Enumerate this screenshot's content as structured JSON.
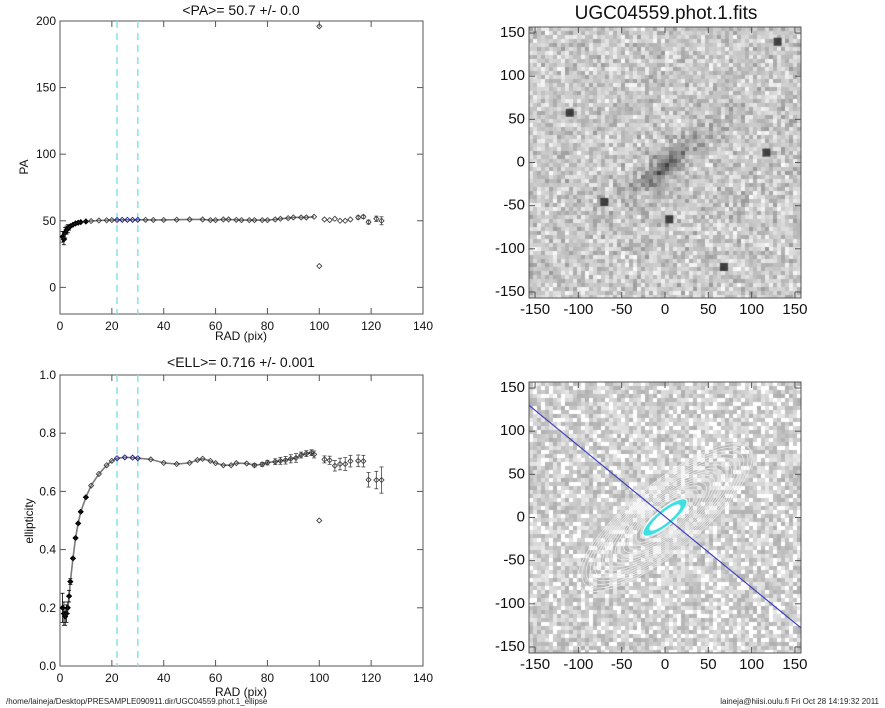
{
  "chart_data": [
    {
      "type": "scatter",
      "title": "<PA>=  50.7 +/-   0.0",
      "xlabel": "RAD (pix)",
      "ylabel": "PA",
      "xlim": [
        0,
        140
      ],
      "ylim": [
        -20,
        200
      ],
      "xticks": [
        0,
        20,
        40,
        60,
        80,
        100,
        120,
        140
      ],
      "yticks": [
        0,
        50,
        100,
        150,
        200
      ],
      "vlines": [
        22,
        30
      ],
      "vline_color": "#7fe8ee",
      "highlight_range": [
        22,
        30
      ],
      "highlight_color": "#1a1aa0",
      "x": [
        1,
        1.5,
        2,
        2.5,
        3,
        3.5,
        4,
        5,
        6,
        7,
        8,
        10,
        12,
        15,
        18,
        20,
        22,
        24,
        26,
        28,
        30,
        33,
        36,
        40,
        45,
        50,
        55,
        58,
        60,
        63,
        65,
        68,
        70,
        73,
        75,
        78,
        80,
        83,
        85,
        88,
        90,
        93,
        95,
        98,
        100,
        100,
        102,
        104,
        106,
        108,
        110,
        112,
        115,
        117,
        119,
        122,
        124
      ],
      "y": [
        38,
        36,
        41,
        43,
        44,
        45,
        46,
        47,
        48,
        48.5,
        49,
        49.5,
        49.8,
        50.2,
        50.4,
        50.5,
        50.6,
        50.7,
        50.7,
        50.7,
        50.7,
        50.7,
        50.6,
        50.6,
        50.8,
        51,
        51,
        50.5,
        50.5,
        51,
        51,
        50.7,
        50.5,
        50.5,
        50.5,
        50.5,
        50.5,
        51,
        51.5,
        52,
        52.5,
        52.5,
        52.5,
        53,
        196,
        16,
        51,
        50.5,
        51.5,
        50,
        50,
        51,
        52.5,
        53,
        49,
        51.5,
        50
      ],
      "yerr": [
        4,
        4,
        4,
        3,
        3,
        2,
        1,
        0.5,
        0.3,
        0.2,
        0.2,
        0.1,
        0.1,
        0.1,
        0.1,
        0.1,
        0.1,
        0.1,
        0.1,
        0.1,
        0.1,
        0.1,
        0.1,
        0.1,
        0.1,
        0.1,
        0.2,
        0.2,
        0.2,
        0.2,
        0.2,
        0.2,
        0.2,
        0.2,
        0.3,
        0.3,
        0.3,
        0.3,
        0.4,
        0.4,
        0.5,
        0.5,
        0.5,
        0.6,
        0.8,
        0.8,
        0.8,
        0.8,
        0.9,
        1,
        1,
        1,
        1.2,
        1.2,
        1.5,
        2,
        3
      ]
    },
    {
      "type": "scatter",
      "title": "<ELL>= 0.716 +/-  0.001",
      "xlabel": "RAD (pix)",
      "ylabel": "ellipticity",
      "xlim": [
        0,
        140
      ],
      "ylim": [
        0,
        1.0
      ],
      "xticks": [
        0,
        20,
        40,
        60,
        80,
        100,
        120,
        140
      ],
      "yticks": [
        0.0,
        0.2,
        0.4,
        0.6,
        0.8,
        1.0
      ],
      "vlines": [
        22,
        30
      ],
      "vline_color": "#7fe8ee",
      "highlight_range": [
        22,
        30
      ],
      "highlight_color": "#1a1aa0",
      "x": [
        1,
        1.5,
        2,
        2.5,
        3,
        3.5,
        4,
        5,
        6,
        7,
        8,
        10,
        12,
        15,
        18,
        20,
        22,
        25,
        28,
        30,
        35,
        40,
        45,
        50,
        53,
        55,
        58,
        60,
        63,
        66,
        68,
        72,
        75,
        78,
        80,
        83,
        85,
        87,
        89,
        91,
        93,
        95,
        97,
        98,
        100,
        102,
        104,
        106,
        108,
        110,
        112,
        115,
        117,
        119,
        122,
        124
      ],
      "y": [
        0.2,
        0.18,
        0.17,
        0.18,
        0.2,
        0.24,
        0.29,
        0.37,
        0.44,
        0.49,
        0.53,
        0.58,
        0.62,
        0.66,
        0.69,
        0.705,
        0.714,
        0.717,
        0.716,
        0.714,
        0.71,
        0.698,
        0.694,
        0.698,
        0.708,
        0.712,
        0.705,
        0.697,
        0.69,
        0.69,
        0.697,
        0.696,
        0.69,
        0.693,
        0.699,
        0.702,
        0.705,
        0.707,
        0.712,
        0.715,
        0.725,
        0.73,
        0.733,
        0.727,
        0.5,
        0.71,
        0.707,
        0.688,
        0.694,
        0.694,
        0.704,
        0.705,
        0.704,
        0.64,
        0.639,
        0.639
      ],
      "yerr": [
        0.05,
        0.04,
        0.03,
        0.03,
        0.02,
        0.02,
        0.01,
        0.005,
        0.004,
        0.003,
        0.003,
        0.002,
        0.002,
        0.002,
        0.002,
        0.002,
        0.002,
        0.002,
        0.002,
        0.002,
        0.002,
        0.002,
        0.003,
        0.003,
        0.003,
        0.003,
        0.004,
        0.004,
        0.004,
        0.005,
        0.005,
        0.005,
        0.006,
        0.007,
        0.008,
        0.01,
        0.012,
        0.013,
        0.014,
        0.015,
        0.01,
        0.01,
        0.01,
        0.012,
        0.005,
        0.012,
        0.014,
        0.018,
        0.02,
        0.022,
        0.02,
        0.02,
        0.02,
        0.025,
        0.03,
        0.045
      ]
    },
    {
      "type": "heatmap",
      "title": "UGC04559.phot.1.fits",
      "xlim": [
        -157,
        157
      ],
      "ylim": [
        -157,
        157
      ],
      "xticks": [
        -150,
        -100,
        -50,
        0,
        50,
        100,
        150
      ],
      "yticks": [
        -150,
        -100,
        -50,
        0,
        50,
        100,
        150
      ],
      "colormap": "grayscale-inverted"
    },
    {
      "type": "heatmap",
      "title": "",
      "xlim": [
        -157,
        157
      ],
      "ylim": [
        -157,
        157
      ],
      "xticks": [
        -150,
        -100,
        -50,
        0,
        50,
        100,
        150
      ],
      "yticks": [
        -150,
        -100,
        -50,
        0,
        50,
        100,
        150
      ],
      "major_axis_pa_deg": 50.7,
      "ellipticity": 0.716,
      "line_color": "#4040c0",
      "contour_color": "#e8e8e8",
      "inner_fill_color": "#40e0e0"
    }
  ],
  "footer": {
    "path": "/home/laineja/Desktop/PRESAMPLE090911.dir/UGC04559.phot.1_ellipse",
    "stamp": "laineja@hiisi.oulu.fi  Fri Oct 28 14:19:32 2011"
  }
}
